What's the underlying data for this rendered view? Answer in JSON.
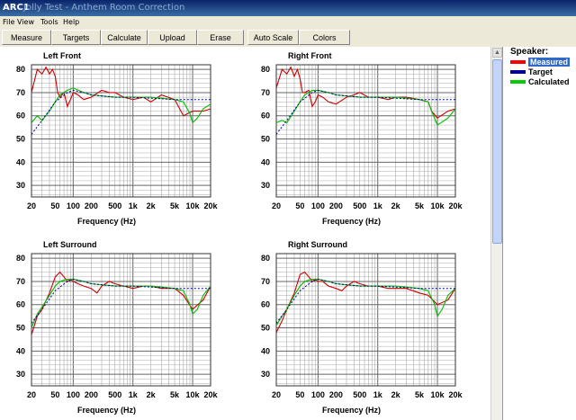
{
  "window": {
    "title": "ARC1",
    "subtitle": "Jolly Test - Anthem Room Correction"
  },
  "menu": [
    "File",
    "View",
    "Tools",
    "Help"
  ],
  "toolbar": [
    "Measure",
    "Targets",
    "Calculate",
    "Upload",
    "Erase",
    "Auto Scale",
    "Colors"
  ],
  "legend": {
    "title": "Speaker:",
    "items": [
      {
        "label": "Measured",
        "color": "#ff0000",
        "selected": true
      },
      {
        "label": "Target",
        "color": "#000099",
        "selected": false
      },
      {
        "label": "Calculated",
        "color": "#00cc00",
        "selected": false
      }
    ]
  },
  "colors": {
    "measured": "#cc0000",
    "target": "#000099",
    "calculated": "#00bb00",
    "grid": "#aaaaaa",
    "grid_major": "#666666",
    "selection": "#316ac5"
  },
  "axis": {
    "xlabel": "Frequency (Hz)",
    "x_ticks": [
      "20",
      "50",
      "100",
      "200",
      "500",
      "1k",
      "2k",
      "5k",
      "10k",
      "20k"
    ],
    "x_tick_values": [
      20,
      50,
      100,
      200,
      500,
      1000,
      2000,
      5000,
      10000,
      20000
    ],
    "y_ticks": [
      "80",
      "70",
      "60",
      "50",
      "40",
      "30"
    ],
    "xlim": [
      20,
      20000
    ],
    "ylim": [
      25,
      82
    ],
    "x_scale": "log"
  },
  "chart_data": [
    {
      "type": "line",
      "title": "Left Front",
      "series": [
        {
          "name": "Measured",
          "x": [
            20,
            25,
            30,
            35,
            40,
            45,
            50,
            55,
            60,
            70,
            80,
            90,
            100,
            120,
            150,
            200,
            300,
            400,
            500,
            700,
            1000,
            1500,
            2000,
            3000,
            5000,
            7000,
            10000,
            15000,
            20000
          ],
          "y": [
            70,
            80,
            78,
            81,
            78,
            80,
            77,
            70,
            68,
            70,
            64,
            67,
            70,
            69,
            67,
            68,
            71,
            70,
            70,
            68,
            67,
            68,
            66,
            69,
            67,
            60,
            62,
            62,
            63
          ]
        },
        {
          "name": "Target",
          "x": [
            20,
            30,
            50,
            80,
            100,
            150,
            200,
            500,
            1000,
            5000,
            10000,
            20000
          ],
          "y": [
            52,
            58,
            66,
            70,
            71,
            70,
            69,
            68,
            68,
            67,
            67,
            67
          ]
        },
        {
          "name": "Calculated",
          "x": [
            20,
            25,
            30,
            40,
            50,
            60,
            80,
            100,
            150,
            200,
            500,
            1000,
            2000,
            5000,
            7000,
            9000,
            10000,
            12000,
            15000,
            20000
          ],
          "y": [
            57,
            60,
            58,
            62,
            66,
            69,
            71,
            72,
            70,
            69,
            68,
            68,
            68,
            67,
            66,
            61,
            57,
            59,
            63,
            65
          ]
        }
      ]
    },
    {
      "type": "line",
      "title": "Right Front",
      "series": [
        {
          "name": "Measured",
          "x": [
            20,
            25,
            30,
            35,
            40,
            45,
            50,
            55,
            60,
            70,
            80,
            90,
            100,
            120,
            150,
            200,
            300,
            400,
            500,
            700,
            1000,
            1500,
            2000,
            3000,
            5000,
            7000,
            8000,
            10000,
            15000,
            20000
          ],
          "y": [
            72,
            80,
            78,
            81,
            77,
            80,
            76,
            70,
            70,
            71,
            64,
            66,
            69,
            68,
            66,
            65,
            68,
            69,
            70,
            68,
            68,
            67,
            68,
            68,
            67,
            66,
            62,
            59,
            62,
            63
          ]
        },
        {
          "name": "Target",
          "x": [
            20,
            30,
            50,
            80,
            100,
            150,
            200,
            500,
            1000,
            5000,
            10000,
            20000
          ],
          "y": [
            52,
            58,
            66,
            70,
            71,
            70,
            69,
            68,
            68,
            67,
            67,
            67
          ]
        },
        {
          "name": "Calculated",
          "x": [
            20,
            25,
            30,
            40,
            50,
            60,
            80,
            100,
            150,
            200,
            500,
            1000,
            2000,
            5000,
            7000,
            8000,
            10000,
            15000,
            20000
          ],
          "y": [
            57,
            58,
            57,
            62,
            66,
            69,
            71,
            71,
            70,
            69,
            68,
            68,
            68,
            67,
            66,
            62,
            56,
            59,
            63
          ]
        }
      ]
    },
    {
      "type": "line",
      "title": "Left Surround",
      "series": [
        {
          "name": "Measured",
          "x": [
            20,
            25,
            30,
            40,
            50,
            60,
            70,
            80,
            90,
            100,
            120,
            150,
            200,
            250,
            300,
            400,
            500,
            700,
            1000,
            1500,
            2000,
            3000,
            5000,
            7000,
            10000,
            15000,
            20000
          ],
          "y": [
            47,
            55,
            58,
            65,
            72,
            74,
            72,
            70,
            71,
            70,
            69,
            68,
            67,
            65,
            68,
            70,
            69,
            68,
            67,
            68,
            68,
            67,
            67,
            64,
            58,
            62,
            68
          ]
        },
        {
          "name": "Target",
          "x": [
            20,
            30,
            50,
            80,
            100,
            150,
            200,
            500,
            1000,
            5000,
            10000,
            20000
          ],
          "y": [
            52,
            58,
            66,
            70,
            71,
            70,
            69,
            68,
            68,
            67,
            67,
            67
          ]
        },
        {
          "name": "Calculated",
          "x": [
            20,
            25,
            30,
            40,
            50,
            60,
            80,
            100,
            150,
            200,
            500,
            1000,
            2000,
            5000,
            7000,
            9000,
            10000,
            12000,
            15000,
            20000
          ],
          "y": [
            50,
            56,
            59,
            64,
            68,
            70,
            71,
            71,
            70,
            69,
            68,
            68,
            68,
            67,
            66,
            60,
            56,
            58,
            64,
            68
          ]
        }
      ]
    },
    {
      "type": "line",
      "title": "Right Surround",
      "series": [
        {
          "name": "Measured",
          "x": [
            20,
            25,
            30,
            40,
            50,
            60,
            70,
            80,
            90,
            100,
            120,
            150,
            200,
            250,
            300,
            400,
            500,
            700,
            1000,
            1500,
            2000,
            3000,
            5000,
            7000,
            10000,
            15000,
            20000
          ],
          "y": [
            48,
            53,
            58,
            65,
            73,
            74,
            72,
            70,
            71,
            70,
            70,
            68,
            67,
            66,
            68,
            70,
            69,
            68,
            68,
            67,
            67,
            67,
            65,
            64,
            60,
            62,
            67
          ]
        },
        {
          "name": "Target",
          "x": [
            20,
            30,
            50,
            80,
            100,
            150,
            200,
            500,
            1000,
            5000,
            10000,
            20000
          ],
          "y": [
            52,
            58,
            66,
            70,
            71,
            70,
            69,
            68,
            68,
            67,
            67,
            67
          ]
        },
        {
          "name": "Calculated",
          "x": [
            20,
            25,
            30,
            40,
            50,
            60,
            80,
            100,
            150,
            200,
            500,
            1000,
            2000,
            5000,
            7000,
            9000,
            10000,
            12000,
            15000,
            20000
          ],
          "y": [
            51,
            55,
            58,
            64,
            68,
            70,
            71,
            71,
            70,
            69,
            68,
            68,
            68,
            67,
            66,
            60,
            55,
            58,
            64,
            67
          ]
        }
      ]
    }
  ]
}
